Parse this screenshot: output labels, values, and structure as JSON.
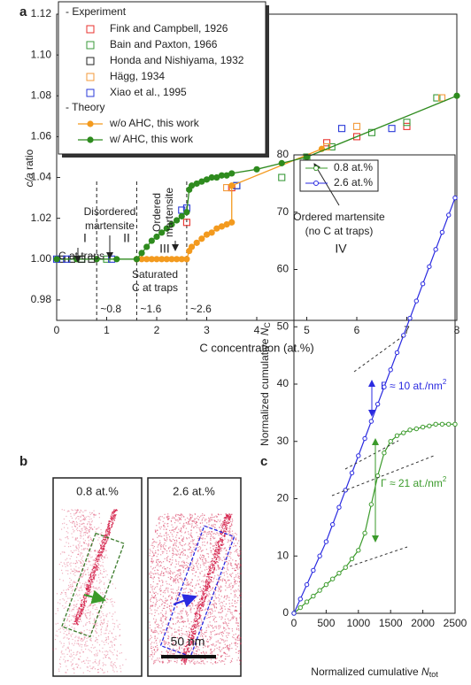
{
  "chart_data": [
    {
      "type": "scatter",
      "panel": "a",
      "y_label": {
        "var": "c/a",
        "text": " ratio"
      },
      "x_label": "C concentration (at.%)",
      "xlim": [
        0,
        8
      ],
      "xticks": [
        0,
        1,
        2,
        3,
        4,
        5,
        6,
        7,
        8
      ],
      "ylim": [
        0.97,
        1.12
      ],
      "yticks": [
        0.98,
        {
          "value": 1,
          "label": "1.00"
        },
        1.02,
        1.04,
        1.06,
        1.08,
        {
          "value": 1.1,
          "label": "1.10"
        },
        1.12
      ],
      "legend_headers": [
        "- Experiment",
        "- Theory"
      ],
      "series": [
        {
          "name": "Fink and Campbell, 1926",
          "color": "#e8322d",
          "marker": "square",
          "x": [
            2.6,
            3.5,
            5.4,
            6.0,
            7.0
          ],
          "values": [
            1.018,
            1.035,
            1.057,
            1.06,
            1.065
          ]
        },
        {
          "name": "Bain and Paxton, 1966",
          "color": "#3a9a3a",
          "marker": "square",
          "x": [
            0.5,
            1.0,
            3.6,
            4.5,
            5.0,
            5.5,
            6.3,
            7.0,
            7.6
          ],
          "values": [
            1.0,
            1.0,
            1.036,
            1.04,
            1.05,
            1.055,
            1.062,
            1.067,
            1.079
          ]
        },
        {
          "name": "Honda and Nishiyama, 1932",
          "color": "#222222",
          "marker": "square",
          "x": [
            0.1,
            0.3,
            0.5,
            0.7
          ],
          "values": [
            1.0,
            1.0,
            1.0,
            1.0
          ]
        },
        {
          "name": "Hägg, 1934",
          "color": "#f39a3a",
          "marker": "square",
          "x": [
            3.4,
            5.4,
            6.0,
            7.7
          ],
          "values": [
            1.035,
            1.055,
            1.065,
            1.079
          ]
        },
        {
          "name": "Xiao et al., 1995",
          "color": "#2a3ad8",
          "marker": "square",
          "x": [
            0.0,
            0.2,
            1.1,
            2.5,
            2.6,
            3.6,
            5.7,
            6.7
          ],
          "values": [
            1.0,
            1.0,
            1.0,
            1.024,
            1.025,
            1.036,
            1.064,
            1.064
          ]
        },
        {
          "name": "w/o AHC, this work",
          "color": "#f39a1e",
          "marker": "circle",
          "line": true,
          "x": [
            1.6,
            1.7,
            1.8,
            1.9,
            2.0,
            2.1,
            2.2,
            2.3,
            2.4,
            2.5,
            2.6,
            2.65,
            2.7,
            2.8,
            2.9,
            3.0,
            3.1,
            3.2,
            3.3,
            3.4,
            3.5,
            3.5,
            5.3
          ],
          "values": [
            1.0,
            1.0,
            1.0,
            1.0,
            1.0,
            1.0,
            1.0,
            1.0,
            1.0,
            1.0,
            1.0,
            1.004,
            1.006,
            1.008,
            1.01,
            1.012,
            1.013,
            1.015,
            1.016,
            1.017,
            1.018,
            1.036,
            1.054
          ]
        },
        {
          "name": "w/  AHC, this work",
          "color": "#2e8b1e",
          "marker": "circle",
          "line": true,
          "x": [
            0,
            0.4,
            0.8,
            1.2,
            1.6,
            1.7,
            1.8,
            1.9,
            2.0,
            2.1,
            2.2,
            2.3,
            2.4,
            2.5,
            2.6,
            2.65,
            2.7,
            2.8,
            2.9,
            3.0,
            3.1,
            3.2,
            3.3,
            3.4,
            3.5,
            4.0,
            4.5,
            5.0,
            8.0
          ],
          "values": [
            1.0,
            1.0,
            1.0,
            1.0,
            1.0,
            1.003,
            1.006,
            1.009,
            1.011,
            1.013,
            1.015,
            1.017,
            1.019,
            1.021,
            1.023,
            1.034,
            1.036,
            1.037,
            1.038,
            1.039,
            1.04,
            1.04,
            1.041,
            1.041,
            1.042,
            1.044,
            1.047,
            1.05,
            1.08
          ]
        }
      ],
      "boundaries": [
        {
          "value": 0.8,
          "label": "~0.8"
        },
        {
          "value": 1.6,
          "label": "~1.6"
        },
        {
          "value": 2.6,
          "label": "~2.6"
        }
      ],
      "annotations": [
        [
          "I"
        ],
        [
          "C at traps"
        ],
        [
          "Disordered",
          "martensite"
        ],
        [
          "II"
        ],
        [
          "Ordered",
          "martensite"
        ],
        [
          "III"
        ],
        [
          "Saturated",
          "C at traps"
        ],
        [
          "IV"
        ],
        [
          "Ordered martensite",
          "(no C at traps)"
        ]
      ]
    },
    {
      "type": "line",
      "panel": "c",
      "y_label": {
        "text": "Normalized cumulative ",
        "var": "N",
        "sub": "C"
      },
      "x_label": {
        "text": "Normalized cumulative ",
        "var": "N",
        "sub": "tot"
      },
      "xlim": [
        0,
        2500
      ],
      "xticks": [
        0,
        500,
        1000,
        1500,
        2000,
        2500
      ],
      "ylim": [
        0,
        80
      ],
      "yticks": [
        0,
        10,
        20,
        30,
        40,
        50,
        60,
        70,
        80
      ],
      "series": [
        {
          "name": "0.8 at.%",
          "color": "#3a9a2a",
          "x": [
            0,
            100,
            200,
            300,
            400,
            500,
            600,
            700,
            800,
            900,
            1000,
            1100,
            1200,
            1300,
            1400,
            1500,
            1600,
            1700,
            1800,
            1900,
            2000,
            2100,
            2200,
            2300,
            2400,
            2500
          ],
          "values": [
            0,
            1,
            2,
            3,
            4,
            5,
            6,
            7,
            8,
            9.5,
            11,
            14,
            19,
            24,
            28,
            30,
            31,
            31.5,
            32,
            32.2,
            32.5,
            32.7,
            33,
            33,
            33,
            33
          ]
        },
        {
          "name": "2.6 at.%",
          "color": "#2a2ae0",
          "x": [
            0,
            100,
            200,
            300,
            400,
            500,
            600,
            700,
            800,
            900,
            1000,
            1100,
            1200,
            1300,
            1400,
            1500,
            1600,
            1700,
            1800,
            1900,
            2000,
            2100,
            2200,
            2300,
            2400,
            2500
          ],
          "values": [
            0,
            2.5,
            5,
            7.5,
            10,
            12.5,
            15.5,
            18.5,
            21.5,
            24.5,
            27.5,
            30.5,
            33.5,
            36.5,
            39.5,
            42.5,
            45.5,
            48.5,
            51.5,
            54.5,
            57.5,
            60.5,
            63.5,
            66.5,
            69.5,
            72.5
          ]
        }
      ],
      "annotations": [
        {
          "text": "Γ ≈ 10 at./nm",
          "sup": "2"
        },
        {
          "text": "Γ ≈ 21 at./nm",
          "sup": "2"
        }
      ]
    }
  ],
  "panel_b": {
    "letter": "b",
    "images": [
      "0.8 at.%",
      "2.6 at.%"
    ],
    "scale_bar": "50 nm"
  }
}
